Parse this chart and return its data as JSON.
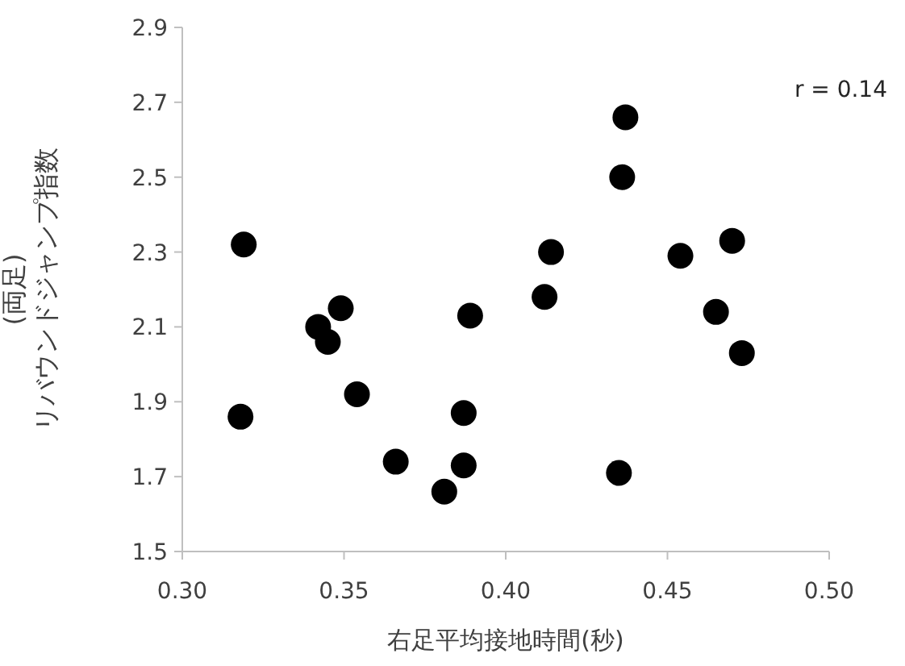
{
  "chart_data": {
    "type": "scatter",
    "xlabel": "右足平均接地時間(秒)",
    "ylabel": "(両足)\nリバウンドジャンプ指数",
    "annotations": [
      "r = 0.14"
    ],
    "xlim": [
      0.3,
      0.5
    ],
    "xticks": [
      {
        "value": 0.3,
        "label": "0.30"
      },
      {
        "value": 0.35,
        "label": "0.35"
      },
      {
        "value": 0.4,
        "label": "0.40"
      },
      {
        "value": 0.45,
        "label": "0.45"
      },
      {
        "value": 0.5,
        "label": "0.50"
      }
    ],
    "ylim": [
      1.5,
      2.9
    ],
    "yticks": [
      1.5,
      1.7,
      1.9,
      2.1,
      2.3,
      2.5,
      2.7,
      2.9
    ],
    "grid": false,
    "marker": "circle",
    "series": [
      {
        "color": "#000000",
        "x": [
          0.319,
          0.318,
          0.342,
          0.345,
          0.349,
          0.354,
          0.366,
          0.381,
          0.387,
          0.387,
          0.389,
          0.412,
          0.414,
          0.436,
          0.437,
          0.435,
          0.454,
          0.47,
          0.465,
          0.473
        ],
        "values": [
          2.32,
          1.86,
          2.1,
          2.06,
          2.15,
          1.92,
          1.74,
          1.66,
          1.73,
          1.87,
          2.13,
          2.18,
          2.3,
          2.5,
          2.66,
          1.71,
          2.29,
          2.33,
          2.14,
          2.03
        ]
      }
    ]
  }
}
